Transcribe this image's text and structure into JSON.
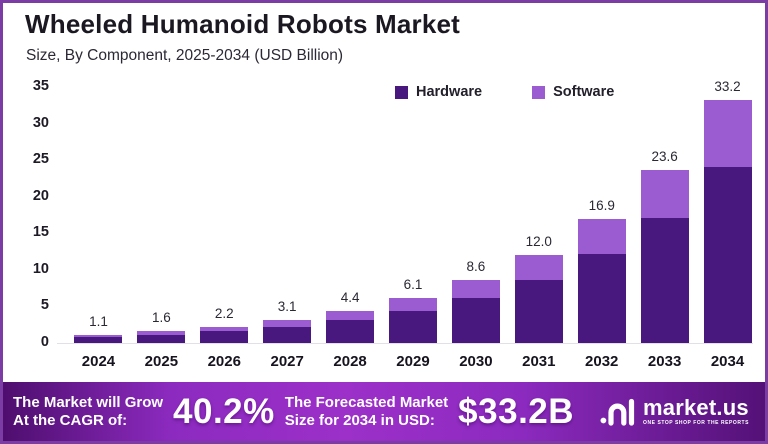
{
  "title": "Wheeled Humanoid Robots Market",
  "subtitle": "Size, By Component, 2025-2034 (USD Billion)",
  "colors": {
    "hardware": "#49187e",
    "software": "#9b5cd2",
    "frame_border": "#7b3da3",
    "banner_gradient_mid": "#9c30c9",
    "banner_gradient_edge": "#4e0e6e"
  },
  "legend": [
    {
      "label": "Hardware",
      "color": "#49187e"
    },
    {
      "label": "Software",
      "color": "#9b5cd2"
    }
  ],
  "chart_data": {
    "type": "bar",
    "stacked": true,
    "title": "Wheeled Humanoid Robots Market",
    "subtitle": "Size, By Component, 2025-2034 (USD Billion)",
    "categories": [
      "2024",
      "2025",
      "2026",
      "2027",
      "2028",
      "2029",
      "2030",
      "2031",
      "2032",
      "2033",
      "2034"
    ],
    "totals": [
      1.1,
      1.6,
      2.2,
      3.1,
      4.4,
      6.1,
      8.6,
      12.0,
      16.9,
      23.6,
      33.2
    ],
    "total_labels": [
      "1.1",
      "1.6",
      "2.2",
      "3.1",
      "4.4",
      "6.1",
      "8.6",
      "12.0",
      "16.9",
      "23.6",
      "33.2"
    ],
    "series": [
      {
        "name": "Hardware",
        "color": "#49187e",
        "values": [
          0.8,
          1.15,
          1.6,
          2.25,
          3.2,
          4.4,
          6.2,
          8.6,
          12.2,
          17.1,
          24.1
        ]
      },
      {
        "name": "Software",
        "color": "#9b5cd2",
        "values": [
          0.3,
          0.45,
          0.6,
          0.85,
          1.2,
          1.7,
          2.4,
          3.4,
          4.7,
          6.5,
          9.1
        ]
      }
    ],
    "xlabel": "",
    "ylabel": "",
    "ylim": [
      0,
      35
    ],
    "yticks": [
      0,
      5,
      10,
      15,
      20,
      25,
      30,
      35
    ],
    "grid": false,
    "legend_position": "top-center"
  },
  "banner": {
    "grow_line1": "The Market will Grow",
    "grow_line2": "At the CAGR of:",
    "cagr_value": "40.2%",
    "forecast_line1": "The Forecasted Market",
    "forecast_line2": "Size for 2034 in USD:",
    "forecast_value": "$33.2B"
  },
  "logo": {
    "name": "market.us",
    "tagline": "ONE STOP SHOP FOR THE REPORTS"
  }
}
